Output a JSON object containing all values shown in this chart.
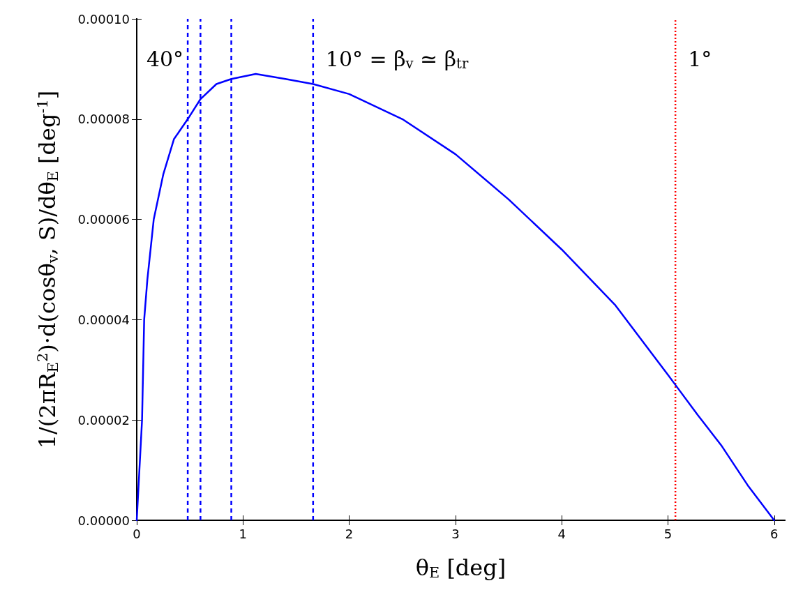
{
  "chart_data": {
    "type": "line",
    "xlabel": "θ$_{E}$ [deg]",
    "ylabel": "1/(2πR$_{E}$$^{2}$)·d(cosθ$_{v}$, S)/dθ$_{E}$ [deg$^{-1}$]",
    "x": [
      0,
      0.025,
      0.05,
      0.07,
      0.1,
      0.16,
      0.25,
      0.35,
      0.48,
      0.6,
      0.75,
      0.89,
      1.12,
      1.4,
      1.66,
      2,
      2.5,
      3,
      3.5,
      4,
      4.5,
      5,
      5.07,
      5.28,
      5.5,
      5.75,
      6
    ],
    "series": [
      {
        "color": "#0000ff",
        "values": [
          0,
          1e-05,
          2e-05,
          4e-05,
          4.8e-05,
          6e-05,
          6.9e-05,
          7.6e-05,
          8e-05,
          8.4e-05,
          8.7e-05,
          8.8e-05,
          8.9e-05,
          8.8e-05,
          8.7e-05,
          8.5e-05,
          8e-05,
          7.3e-05,
          6.4e-05,
          5.4e-05,
          4.3e-05,
          2.9e-05,
          2.7e-05,
          2.1e-05,
          1.5e-05,
          7e-06,
          0
        ]
      }
    ],
    "xlim": [
      0,
      6.1
    ],
    "xticks": [
      0,
      1,
      2,
      3,
      4,
      5,
      6
    ],
    "ylim": [
      0,
      0.0001
    ],
    "yticks": [
      {
        "value": 0,
        "label": "0.00000"
      },
      {
        "value": 2e-05,
        "label": "0.00002"
      },
      {
        "value": 4e-05,
        "label": "0.00004"
      },
      {
        "value": 6e-05,
        "label": "0.00006"
      },
      {
        "value": 8e-05,
        "label": "0.00008"
      },
      {
        "value": 0.0001,
        "label": "0.00010"
      }
    ],
    "ref_lines": [
      {
        "axis": "x",
        "value": 0.48,
        "color": "#0000ff",
        "line_style": "dashed"
      },
      {
        "axis": "x",
        "value": 0.6,
        "color": "#0000ff",
        "line_style": "dashed"
      },
      {
        "axis": "x",
        "value": 0.89,
        "color": "#0000ff",
        "line_style": "dashed"
      },
      {
        "axis": "x",
        "value": 1.66,
        "color": "#0000ff",
        "line_style": "dashed"
      },
      {
        "axis": "x",
        "value": 5.07,
        "color": "#ff0000",
        "line_style": "dotted"
      }
    ],
    "annotations": [
      {
        "text": "40°",
        "x": 0.48,
        "y": 9.2e-05
      },
      {
        "text": "10° = β$_{v}$ ≃ β$_{tr}$",
        "x": 1.66,
        "y": 9.2e-05
      },
      {
        "text": "1°",
        "x": 5.07,
        "y": 9.2e-05
      }
    ],
    "marker": "none",
    "line_style": "solid"
  }
}
